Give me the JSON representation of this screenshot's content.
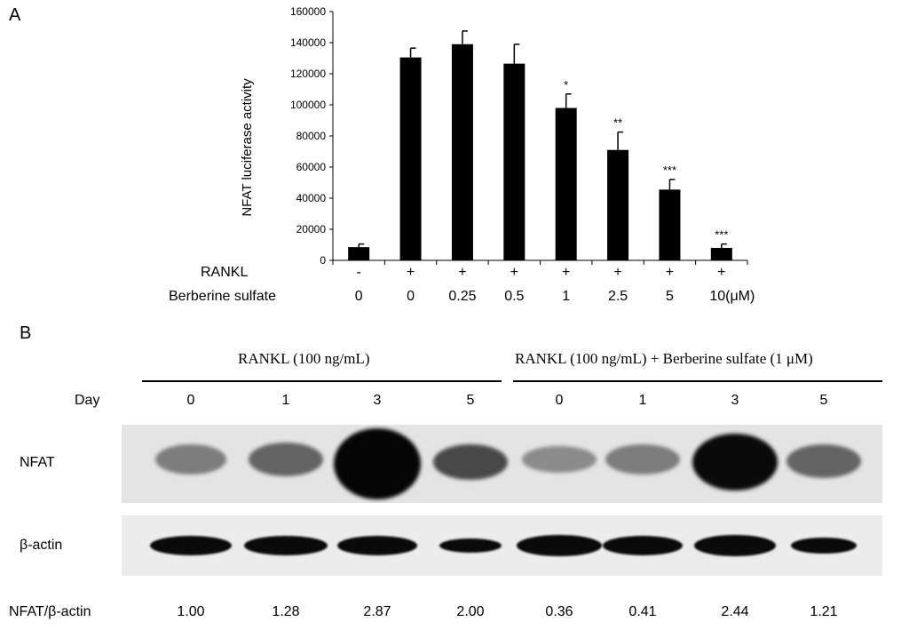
{
  "panel_a": {
    "letter": "A",
    "row_labels": [
      "RANKL",
      "Berberine sulfate"
    ],
    "rankl_signs": [
      "-",
      "+",
      "+",
      "+",
      "+",
      "+",
      "+",
      "+"
    ],
    "berberine_doses": [
      "0",
      "0",
      "0.25",
      "0.5",
      "1",
      "2.5",
      "5",
      "10(μM)"
    ]
  },
  "chart_data": {
    "type": "bar",
    "ylabel": "NFAT luciferase activity",
    "xlabel": "",
    "ylim": [
      0,
      160000
    ],
    "yticks": [
      0,
      20000,
      40000,
      60000,
      80000,
      100000,
      120000,
      140000,
      160000
    ],
    "categories": [
      "0",
      "0",
      "0.25",
      "0.5",
      "1",
      "2.5",
      "5",
      "10(μM)"
    ],
    "values": [
      8500,
      130500,
      139000,
      126500,
      98000,
      71000,
      45500,
      8000
    ],
    "errors": [
      2000,
      6000,
      8500,
      12500,
      9000,
      11500,
      6500,
      2500
    ],
    "significance": [
      "",
      "",
      "",
      "",
      "*",
      "**",
      "***",
      "***"
    ],
    "bar_color": "#000000",
    "grid": false
  },
  "panel_b": {
    "letter": "B",
    "group1_label": "RANKL (100 ng/mL)",
    "group2_label": "RANKL (100 ng/mL) + Berberine sulfate (1 μM)",
    "day_label": "Day",
    "days": [
      "0",
      "1",
      "3",
      "5",
      "0",
      "1",
      "3",
      "5"
    ],
    "nfat_label": "NFAT",
    "actin_label": "β-actin",
    "ratio_label": "NFAT/β-actin",
    "ratios": [
      "1.00",
      "1.28",
      "2.87",
      "2.00",
      "0.36",
      "0.41",
      "2.44",
      "1.21"
    ]
  }
}
